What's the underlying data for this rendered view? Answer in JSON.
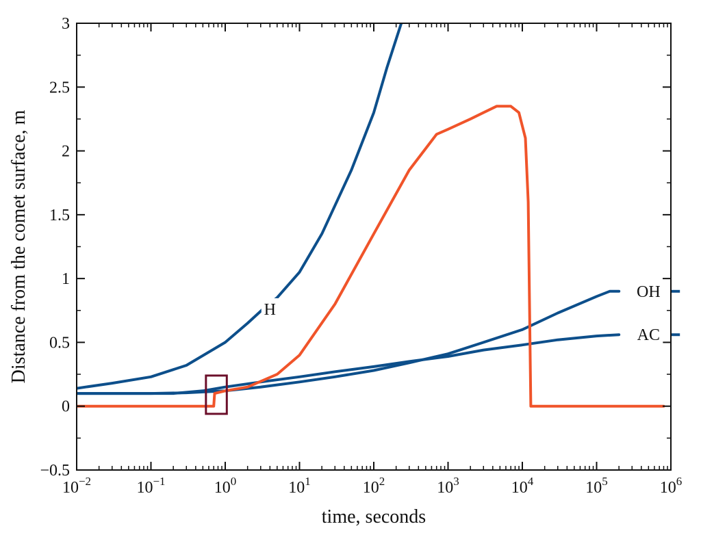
{
  "chart_data": {
    "type": "line",
    "title": "",
    "xlabel": "time, seconds",
    "ylabel": "Distance from the comet surface, m",
    "xscale": "log",
    "xlim": [
      0.01,
      1000000
    ],
    "ylim": [
      -0.5,
      3
    ],
    "x_ticks": [
      {
        "value": 0.01,
        "base": "10",
        "exp": "−2"
      },
      {
        "value": 0.1,
        "base": "10",
        "exp": "−1"
      },
      {
        "value": 1,
        "base": "10",
        "exp": "0"
      },
      {
        "value": 10,
        "base": "10",
        "exp": "1"
      },
      {
        "value": 100,
        "base": "10",
        "exp": "2"
      },
      {
        "value": 1000,
        "base": "10",
        "exp": "3"
      },
      {
        "value": 10000,
        "base": "10",
        "exp": "4"
      },
      {
        "value": 100000,
        "base": "10",
        "exp": "5"
      },
      {
        "value": 1000000,
        "base": "10",
        "exp": "6"
      }
    ],
    "y_ticks": [
      {
        "value": -0.5,
        "label": "−0.5"
      },
      {
        "value": 0,
        "label": "0"
      },
      {
        "value": 0.5,
        "label": "0.5"
      },
      {
        "value": 1,
        "label": "1"
      },
      {
        "value": 1.5,
        "label": "1.5"
      },
      {
        "value": 2,
        "label": "2"
      },
      {
        "value": 2.5,
        "label": "2.5"
      },
      {
        "value": 3,
        "label": "3"
      }
    ],
    "grid": false,
    "colors": {
      "blue": "#0d4f8b",
      "orange": "#f0542a",
      "highlight": "#6b0f2a"
    },
    "series": [
      {
        "name": "H",
        "color": "#0d4f8b",
        "points": [
          [
            0.01,
            0.14
          ],
          [
            0.03,
            0.18
          ],
          [
            0.1,
            0.23
          ],
          [
            0.3,
            0.32
          ],
          [
            1,
            0.5
          ],
          [
            2,
            0.65
          ],
          [
            3.5,
            0.78
          ],
          [
            5,
            0.85
          ],
          [
            10,
            1.05
          ],
          [
            20,
            1.35
          ],
          [
            50,
            1.85
          ],
          [
            100,
            2.3
          ],
          [
            150,
            2.65
          ],
          [
            220,
            2.95
          ],
          [
            250,
            3.05
          ]
        ]
      },
      {
        "name": "OH",
        "color": "#0d4f8b",
        "points": [
          [
            0.01,
            0.1
          ],
          [
            0.1,
            0.1
          ],
          [
            0.3,
            0.105
          ],
          [
            1,
            0.12
          ],
          [
            3,
            0.15
          ],
          [
            10,
            0.19
          ],
          [
            30,
            0.23
          ],
          [
            100,
            0.28
          ],
          [
            300,
            0.34
          ],
          [
            1000,
            0.41
          ],
          [
            3000,
            0.5
          ],
          [
            10000,
            0.6
          ],
          [
            30000,
            0.73
          ],
          [
            100000,
            0.86
          ],
          [
            150000,
            0.9
          ],
          [
            200000,
            0.9
          ]
        ]
      },
      {
        "name": "AC",
        "color": "#0d4f8b",
        "points": [
          [
            0.01,
            0.1
          ],
          [
            0.2,
            0.1
          ],
          [
            0.5,
            0.12
          ],
          [
            1,
            0.15
          ],
          [
            3,
            0.19
          ],
          [
            10,
            0.23
          ],
          [
            30,
            0.27
          ],
          [
            100,
            0.31
          ],
          [
            300,
            0.35
          ],
          [
            1000,
            0.39
          ],
          [
            3000,
            0.44
          ],
          [
            10000,
            0.48
          ],
          [
            30000,
            0.52
          ],
          [
            100000,
            0.55
          ],
          [
            200000,
            0.56
          ]
        ]
      },
      {
        "name": "",
        "color": "#f0542a",
        "points": [
          [
            0.01,
            0
          ],
          [
            0.7,
            0
          ],
          [
            0.72,
            0.1
          ],
          [
            1,
            0.12
          ],
          [
            2,
            0.15
          ],
          [
            5,
            0.25
          ],
          [
            10,
            0.4
          ],
          [
            30,
            0.8
          ],
          [
            100,
            1.35
          ],
          [
            300,
            1.85
          ],
          [
            700,
            2.13
          ],
          [
            1000,
            2.17
          ],
          [
            2000,
            2.25
          ],
          [
            3000,
            2.3
          ],
          [
            4500,
            2.35
          ],
          [
            7000,
            2.35
          ],
          [
            9000,
            2.3
          ],
          [
            11000,
            2.1
          ],
          [
            12000,
            1.6
          ],
          [
            12500,
            0.8
          ],
          [
            13000,
            0
          ],
          [
            800000,
            0
          ]
        ]
      }
    ],
    "label_stubs": [
      {
        "series": "OH",
        "x_start": 700000,
        "x_end": 1000000,
        "y": 0.9
      },
      {
        "series": "AC",
        "x_start": 700000,
        "x_end": 1000000,
        "y": 0.56
      }
    ],
    "annotations": [
      {
        "text": "H",
        "x": 4,
        "y": 0.76
      },
      {
        "text": "OH",
        "x": 500000,
        "y": 0.9
      },
      {
        "text": "AC",
        "x": 500000,
        "y": 0.56
      }
    ],
    "highlight_box": {
      "x0": 0.55,
      "x1": 1.05,
      "y0": -0.06,
      "y1": 0.24
    }
  }
}
